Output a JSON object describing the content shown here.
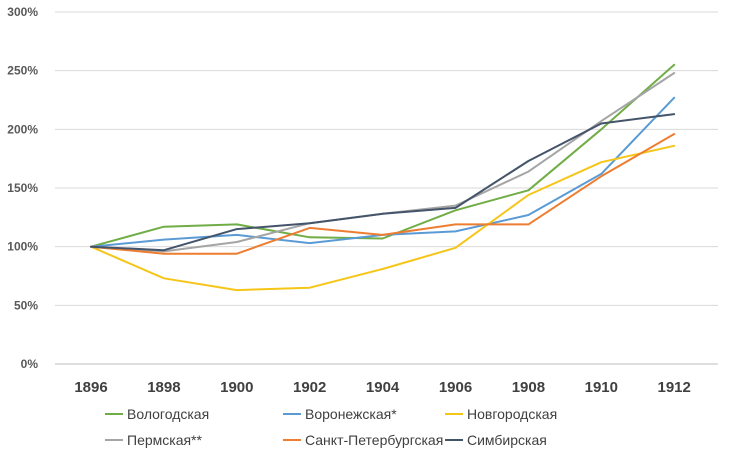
{
  "chart_data": {
    "type": "line",
    "title": "",
    "xlabel": "",
    "ylabel": "",
    "x": [
      "1896",
      "1898",
      "1900",
      "1902",
      "1904",
      "1906",
      "1908",
      "1910",
      "1912"
    ],
    "ylim": [
      0,
      300
    ],
    "yticks": [
      0,
      50,
      100,
      150,
      200,
      250,
      300
    ],
    "ytick_labels": [
      "0%",
      "50%",
      "100%",
      "150%",
      "200%",
      "250%",
      "300%"
    ],
    "grid": true,
    "legend_position": "bottom",
    "series": [
      {
        "name": "Вологодская",
        "color": "#70ad47",
        "values": [
          100,
          117,
          119,
          108,
          107,
          131,
          148,
          200,
          255
        ]
      },
      {
        "name": "Воронежская*",
        "color": "#5b9bd5",
        "values": [
          100,
          106,
          110,
          103,
          110,
          113,
          127,
          162,
          227
        ]
      },
      {
        "name": "Новгородская",
        "color": "#f5c518",
        "values": [
          100,
          73,
          63,
          65,
          81,
          99,
          144,
          172,
          186
        ]
      },
      {
        "name": "Пермская**",
        "color": "#a5a5a5",
        "values": [
          100,
          96,
          104,
          120,
          128,
          135,
          164,
          207,
          248
        ]
      },
      {
        "name": "Санкт-Петербургская",
        "color": "#ed7d31",
        "values": [
          100,
          94,
          94,
          116,
          110,
          119,
          119,
          160,
          196
        ]
      },
      {
        "name": "Симбирская",
        "color": "#44546a",
        "values": [
          100,
          97,
          115,
          120,
          128,
          133,
          173,
          205,
          213
        ]
      }
    ]
  }
}
